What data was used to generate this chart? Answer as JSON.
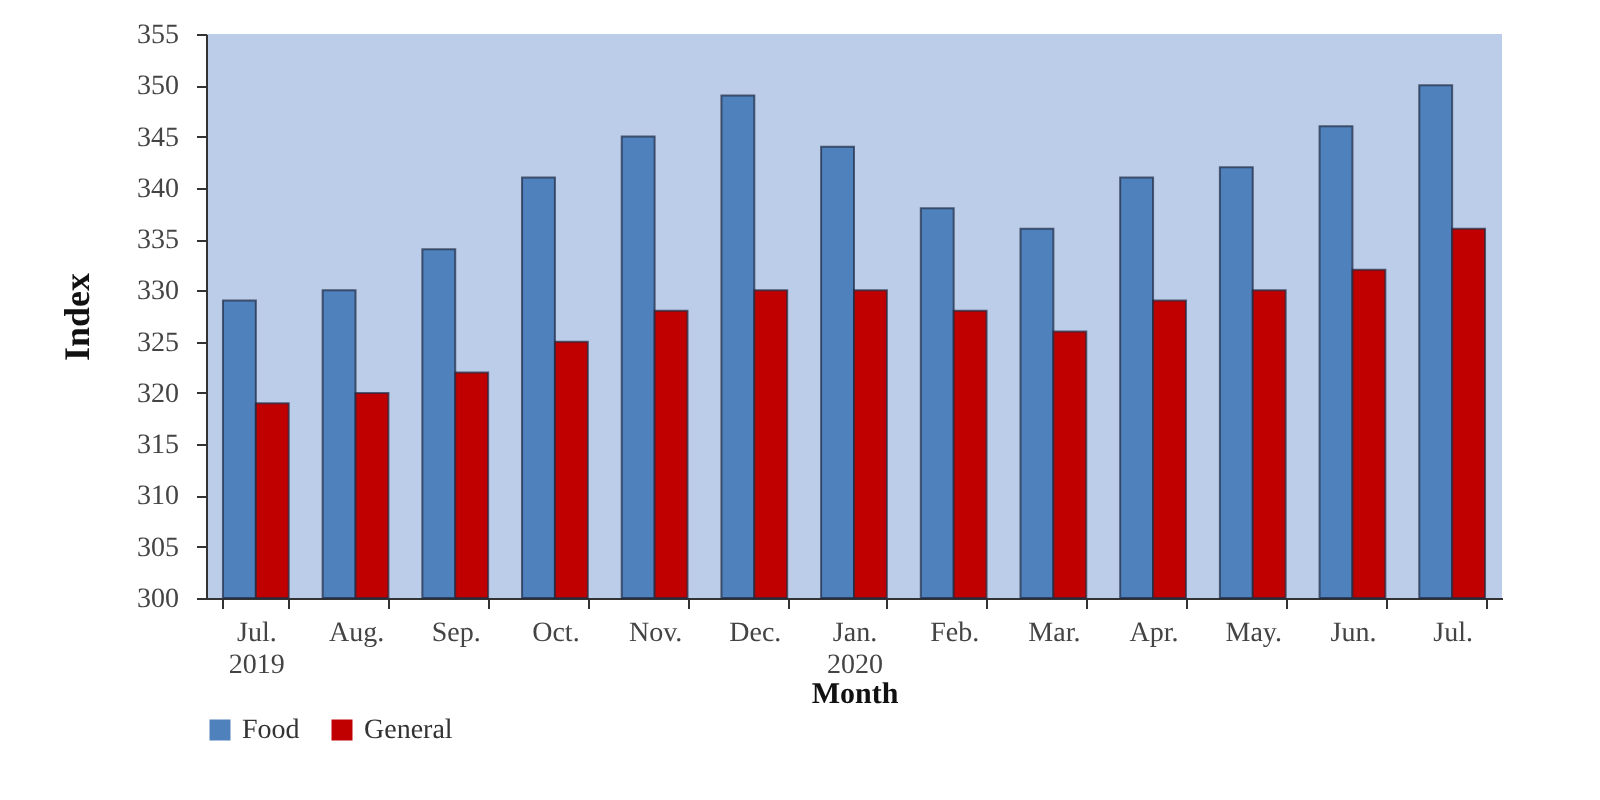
{
  "chart_data": {
    "type": "bar",
    "xlabel": "Month",
    "ylabel": "Index",
    "categories": [
      "Jul. 2019",
      "Aug.",
      "Sep.",
      "Oct.",
      "Nov.",
      "Dec.",
      "Jan. 2020",
      "Feb.",
      "Mar.",
      "Apr.",
      "May.",
      "Jun.",
      "Jul."
    ],
    "series": [
      {
        "name": "Food",
        "color": "#4f81bd",
        "values": [
          329,
          330,
          334,
          341,
          345,
          349,
          344,
          338,
          336,
          341,
          342,
          346,
          350
        ]
      },
      {
        "name": "General",
        "color": "#c00000",
        "values": [
          319,
          320,
          322,
          325,
          328,
          330,
          330,
          328,
          326,
          329,
          330,
          332,
          336
        ]
      }
    ],
    "ylim": [
      300,
      355
    ],
    "yticks": [
      300,
      305,
      310,
      315,
      320,
      325,
      330,
      335,
      340,
      345,
      350,
      355
    ],
    "legend": "bottom"
  }
}
